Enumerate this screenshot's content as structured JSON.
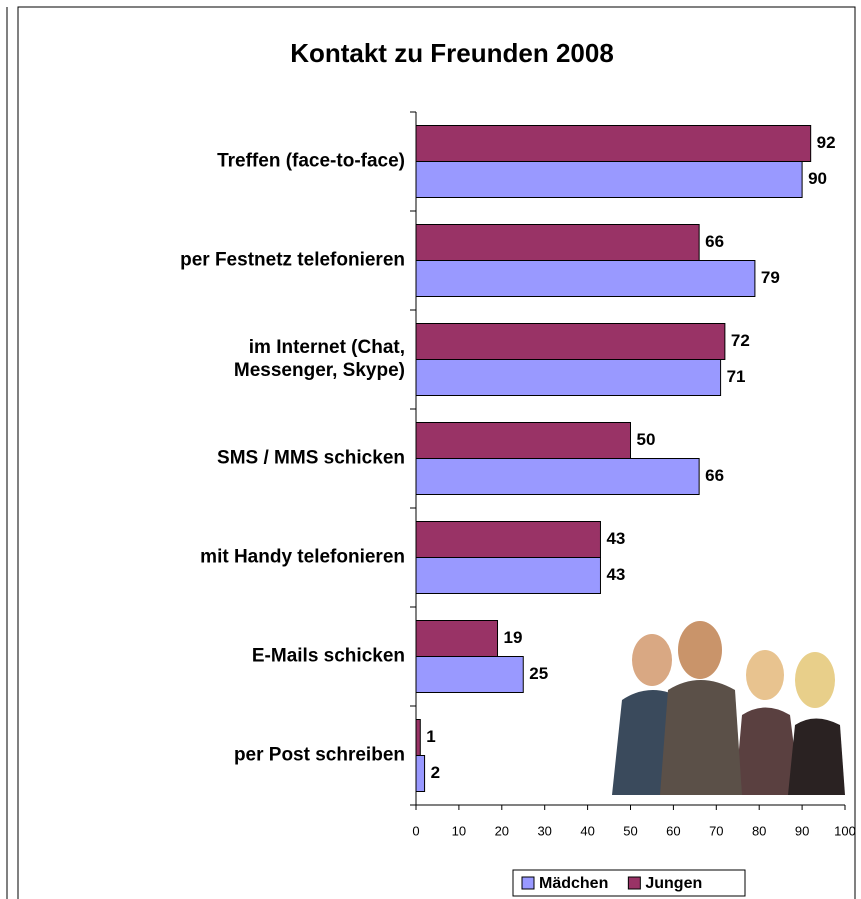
{
  "chart_data": {
    "type": "bar",
    "orientation": "horizontal",
    "title": "Kontakt zu Freunden 2008",
    "categories": [
      "Treffen (face-to-face)",
      "per Festnetz telefonieren",
      "im Internet (Chat,\nMessenger, Skype)",
      "SMS / MMS schicken",
      "mit Handy telefonieren",
      "E-Mails schicken",
      "per Post schreiben"
    ],
    "series": [
      {
        "name": "Mädchen",
        "color": "#9999ff",
        "values": [
          90,
          79,
          71,
          66,
          43,
          25,
          2
        ]
      },
      {
        "name": "Jungen",
        "color": "#993366",
        "values": [
          92,
          66,
          72,
          50,
          43,
          19,
          1
        ]
      }
    ],
    "xlim": [
      0,
      100
    ],
    "xticks": [
      0,
      10,
      20,
      30,
      40,
      50,
      60,
      70,
      80,
      90,
      100
    ],
    "legend": "bottom"
  }
}
